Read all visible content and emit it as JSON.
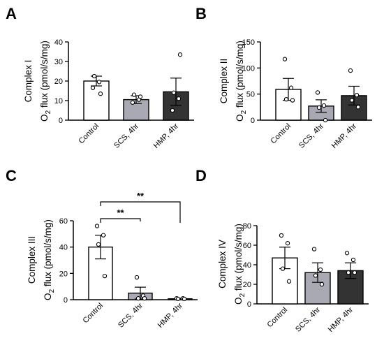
{
  "chart_data": [
    {
      "panel": "A",
      "type": "bar",
      "ylabel_line1": "Complex I",
      "ylabel_line2_pre": "O",
      "ylabel_line2_sub": "2",
      "ylabel_line2_post": " flux (pmol/s/mg)",
      "ylim": [
        0,
        40
      ],
      "yticks": [
        0,
        10,
        20,
        30,
        40
      ],
      "categories": [
        "Control",
        "SCS, 4hr",
        "HMP, 4hr"
      ],
      "bar_colors": [
        "#ffffff",
        "#a9a9b3",
        "#333333"
      ],
      "values": [
        20,
        10.5,
        14.5
      ],
      "errors": [
        2.5,
        2,
        7
      ],
      "points": [
        [
          16.5,
          19.5,
          22.5,
          13.5
        ],
        [
          9,
          10.5,
          13,
          12
        ],
        [
          5,
          11,
          14,
          33.5
        ]
      ],
      "significance": []
    },
    {
      "panel": "B",
      "type": "bar",
      "ylabel_line1": "Complex II",
      "ylabel_line2_pre": "O",
      "ylabel_line2_sub": "2",
      "ylabel_line2_post": " flux (pmol/s/mg)",
      "ylim": [
        0,
        150
      ],
      "yticks": [
        0,
        50,
        100,
        150
      ],
      "categories": [
        "Control",
        "SCS, 4hr",
        "HMP, 4hr"
      ],
      "bar_colors": [
        "#ffffff",
        "#a9a9b3",
        "#333333"
      ],
      "values": [
        59,
        27,
        47
      ],
      "errors": [
        21,
        12,
        18
      ],
      "points": [
        [
          117,
          62,
          40,
          38
        ],
        [
          53,
          28,
          24,
          0
        ],
        [
          95,
          48,
          38,
          25
        ]
      ],
      "significance": []
    },
    {
      "panel": "C",
      "type": "bar",
      "ylabel_line1": "Complex III",
      "ylabel_line2_pre": "O",
      "ylabel_line2_sub": "2",
      "ylabel_line2_post": " flux (pmol/s/mg)",
      "ylim": [
        0,
        60
      ],
      "yticks": [
        0,
        20,
        40,
        60
      ],
      "categories": [
        "Control",
        "SCS, 4hr",
        "HMP, 4hr"
      ],
      "bar_colors": [
        "#ffffff",
        "#a9a9b3",
        "#333333"
      ],
      "values": [
        40,
        5,
        0.7
      ],
      "errors": [
        9,
        4.5,
        0.4
      ],
      "points": [
        [
          56,
          49,
          42,
          18
        ],
        [
          17,
          3,
          1,
          1
        ],
        [
          1,
          1,
          0.6,
          0.6
        ]
      ],
      "significance": [
        {
          "from": 0,
          "to": 1,
          "label": "**",
          "level": 1
        },
        {
          "from": 0,
          "to": 2,
          "label": "**",
          "level": 2
        }
      ]
    },
    {
      "panel": "D",
      "type": "bar",
      "ylabel_line1": "Complex IV",
      "ylabel_line2_pre": "O",
      "ylabel_line2_sub": "2",
      "ylabel_line2_post": " flux (pmol/s/mg)",
      "ylim": [
        0,
        80
      ],
      "yticks": [
        0,
        20,
        40,
        60,
        80
      ],
      "categories": [
        "Control",
        "SCS, 4hr",
        "HMP, 4hr"
      ],
      "bar_colors": [
        "#ffffff",
        "#a9a9b3",
        "#333333"
      ],
      "values": [
        47,
        32,
        34
      ],
      "errors": [
        11,
        10,
        8
      ],
      "points": [
        [
          70,
          62,
          36,
          23
        ],
        [
          56,
          35,
          29,
          20
        ],
        [
          52,
          45,
          32,
          32
        ]
      ],
      "significance": []
    }
  ]
}
